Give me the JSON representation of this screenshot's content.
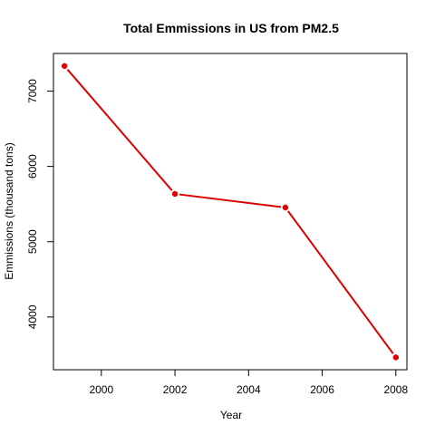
{
  "chart_data": {
    "type": "line",
    "title": "Total Emmissions in US from PM2.5",
    "xlabel": "Year",
    "ylabel": "Emmissions (thousand tons)",
    "x": [
      1999,
      2002,
      2005,
      2008
    ],
    "series": [
      {
        "values": [
          7332.967,
          5635.216,
          5454.703,
          3464.206
        ]
      }
    ],
    "xlim": [
      1998.7,
      2008.3
    ],
    "ylim": [
      3300,
      7500
    ],
    "xticks": [
      2000,
      2002,
      2004,
      2006,
      2008
    ],
    "xtick_labels": [
      "2000",
      "2002",
      "2004",
      "2006",
      "2008"
    ],
    "yticks": [
      4000,
      5000,
      6000,
      7000
    ],
    "ytick_labels": [
      "4000",
      "5000",
      "6000",
      "7000"
    ],
    "line_color": "#dd0000",
    "point_color": "#dd0000",
    "grid": false,
    "legend": "none"
  }
}
